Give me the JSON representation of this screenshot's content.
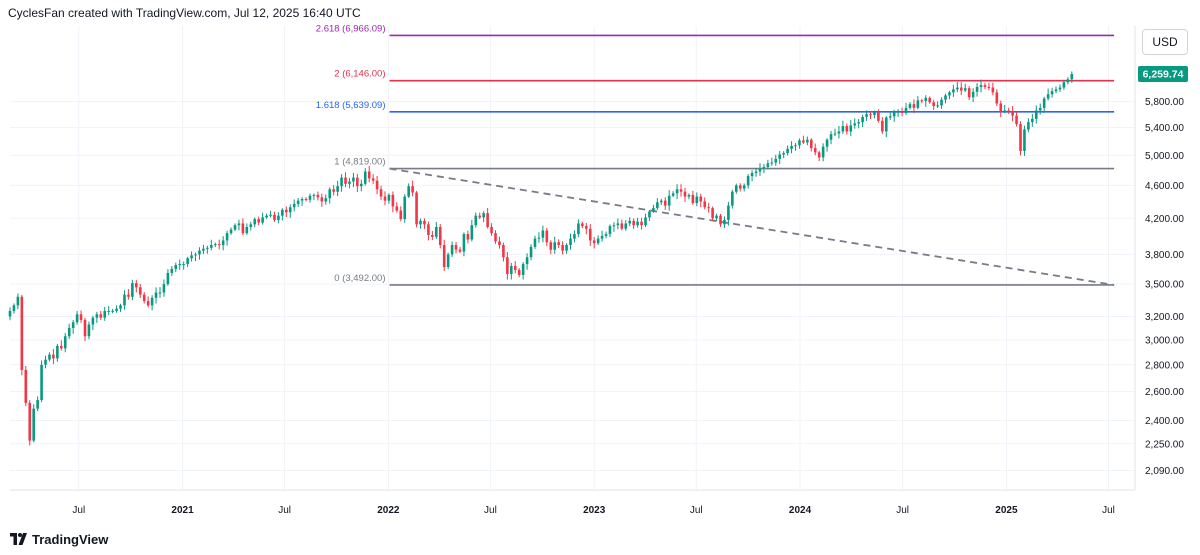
{
  "header": {
    "text": "CyclesFan created with TradingView.com, Jul 12, 2025 16:40 UTC"
  },
  "currency_button": {
    "label": "USD"
  },
  "branding": {
    "name": "TradingView",
    "logo_icon": "tradingview-logo-icon"
  },
  "colors": {
    "up": "#089981",
    "down": "#f23645",
    "fib_2618": "#9c27b0",
    "fib_2": "#e0314e",
    "fib_1618": "#2962ff",
    "fib_1": "#787b86",
    "fib_0": "#787b86",
    "trendline": "#787b86",
    "last_price_bg": "#089981"
  },
  "chart_data": {
    "type": "candlestick",
    "interval": "weekly",
    "y_scale": "log",
    "ylim": [
      1980,
      7150
    ],
    "x_range": [
      "2020-03-01",
      "2025-07-25"
    ],
    "y_ticks": [
      "2,090.00",
      "2,250.00",
      "2,400.00",
      "2,600.00",
      "2,800.00",
      "3,000.00",
      "3,200.00",
      "3,500.00",
      "3,800.00",
      "4,200.00",
      "4,600.00",
      "5,000.00",
      "5,400.00",
      "5,800.00"
    ],
    "y_tick_values": [
      2090,
      2250,
      2400,
      2600,
      2800,
      3000,
      3200,
      3500,
      3800,
      4200,
      4600,
      5000,
      5400,
      5800
    ],
    "x_ticks": [
      {
        "label": "Jul",
        "date": "2020-07-01",
        "bold": false
      },
      {
        "label": "2021",
        "date": "2021-01-01",
        "bold": true
      },
      {
        "label": "Jul",
        "date": "2021-07-01",
        "bold": false
      },
      {
        "label": "2022",
        "date": "2022-01-01",
        "bold": true
      },
      {
        "label": "Jul",
        "date": "2022-07-01",
        "bold": false
      },
      {
        "label": "2023",
        "date": "2023-01-01",
        "bold": true
      },
      {
        "label": "Jul",
        "date": "2023-07-01",
        "bold": false
      },
      {
        "label": "2024",
        "date": "2024-01-01",
        "bold": true
      },
      {
        "label": "Jul",
        "date": "2024-07-01",
        "bold": false
      },
      {
        "label": "2025",
        "date": "2025-01-01",
        "bold": true
      },
      {
        "label": "Jul",
        "date": "2025-07-01",
        "bold": false
      }
    ],
    "fib_levels": [
      {
        "label": "2.618 (6,966.09)",
        "value": 6966.09,
        "color": "#9c27b0"
      },
      {
        "label": "2 (6,146.00)",
        "value": 6146,
        "color": "#e0314e"
      },
      {
        "label": "1.618 (5,639.09)",
        "value": 5639.09,
        "color": "#2962ff"
      },
      {
        "label": "1 (4,819.00)",
        "value": 4819,
        "color": "#787b86"
      },
      {
        "label": "0 (3,492.00)",
        "value": 3492,
        "color": "#787b86"
      }
    ],
    "fib_start_date": "2022-01-03",
    "fib_end_date": "2025-07-11",
    "trendline": {
      "from": {
        "date": "2022-01-03",
        "value": 4819
      },
      "to": {
        "date": "2025-07-11",
        "value": 3492
      },
      "style": "dashed"
    },
    "last_price": {
      "label": "6,259.74",
      "value": 6259.74
    },
    "start_date": "2020-03-01",
    "closes": [
      3250,
      3300,
      3380,
      2760,
      2520,
      2270,
      2480,
      2540,
      2800,
      2840,
      2880,
      2850,
      2950,
      2930,
      3030,
      3100,
      3150,
      3220,
      3170,
      3030,
      3130,
      3190,
      3220,
      3190,
      3250,
      3250,
      3250,
      3270,
      3300,
      3400,
      3380,
      3510,
      3470,
      3400,
      3340,
      3300,
      3370,
      3420,
      3420,
      3500,
      3610,
      3650,
      3690,
      3700,
      3700,
      3760,
      3790,
      3800,
      3840,
      3860,
      3870,
      3900,
      3910,
      3900,
      3950,
      4030,
      4070,
      4120,
      4140,
      4030,
      4100,
      4130,
      4190,
      4150,
      4210,
      4230,
      4240,
      4180,
      4230,
      4300,
      4270,
      4330,
      4370,
      4410,
      4430,
      4420,
      4470,
      4480,
      4450,
      4400,
      4440,
      4550,
      4520,
      4590,
      4700,
      4620,
      4650,
      4700,
      4590,
      4620,
      4780,
      4690,
      4660,
      4550,
      4460,
      4410,
      4480,
      4340,
      4290,
      4190,
      4460,
      4590,
      4510,
      4130,
      4170,
      4130,
      4010,
      3990,
      4100,
      3900,
      3670,
      3800,
      3900,
      3850,
      3830,
      4020,
      3960,
      4120,
      4230,
      4210,
      4260,
      4100,
      4030,
      3940,
      3900,
      3770,
      3600,
      3680,
      3640,
      3590,
      3700,
      3770,
      3880,
      3970,
      3980,
      4060,
      3930,
      3850,
      3930,
      3900,
      3840,
      3900,
      3970,
      4020,
      4140,
      4110,
      4080,
      3950,
      3920,
      3970,
      4000,
      4020,
      4110,
      4120,
      4140,
      4080,
      4140,
      4170,
      4120,
      4160,
      4120,
      4210,
      4280,
      4320,
      4390,
      4410,
      4350,
      4470,
      4500,
      4550,
      4520,
      4460,
      4480,
      4380,
      4460,
      4400,
      4330,
      4320,
      4200,
      4230,
      4130,
      4180,
      4350,
      4520,
      4600,
      4560,
      4600,
      4720,
      4760,
      4780,
      4820,
      4840,
      4890,
      4900,
      4950,
      5010,
      5030,
      5090,
      5130,
      5140,
      5210,
      5180,
      5220,
      5100,
      5040,
      4970,
      5120,
      5220,
      5300,
      5310,
      5340,
      5420,
      5340,
      5430,
      5460,
      5480,
      5560,
      5600,
      5590,
      5630,
      5500,
      5340,
      5550,
      5570,
      5630,
      5640,
      5620,
      5700,
      5760,
      5700,
      5820,
      5810,
      5860,
      5790,
      5730,
      5740,
      5830,
      5900,
      5950,
      6000,
      6030,
      5980,
      6020,
      5870,
      5960,
      6040,
      6070,
      6040,
      6030,
      5950,
      5770,
      5640,
      5660,
      5650,
      5580,
      5450,
      5060,
      5370,
      5480,
      5530,
      5660,
      5700,
      5850,
      5920,
      5970,
      6000,
      6030,
      6120,
      6170,
      6260
    ],
    "data_note": "Weekly closes approximated from chart, one per week starting 2020-03-01 (first visible week ~Mar 2020)."
  }
}
